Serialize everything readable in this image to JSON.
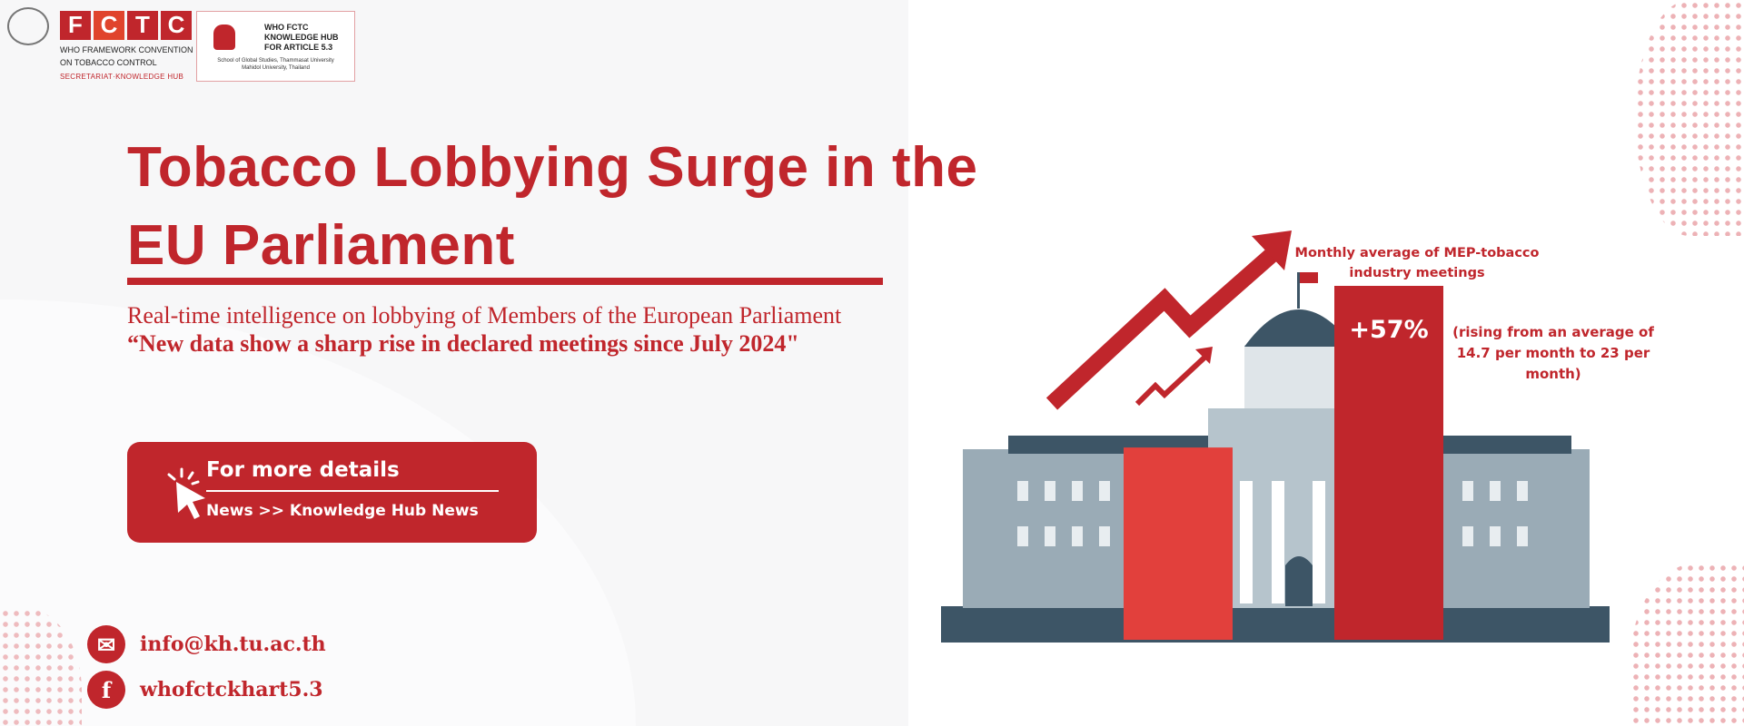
{
  "logos": {
    "fctc_letters": [
      "F",
      "C",
      "T",
      "C"
    ],
    "fctc_line1": "WHO FRAMEWORK CONVENTION",
    "fctc_line2": "ON TOBACCO CONTROL",
    "fctc_line3": "SECRETARIAT·KNOWLEDGE HUB",
    "hub_line1": "WHO FCTC",
    "hub_line2": "KNOWLEDGE HUB",
    "hub_line3": "FOR ARTICLE 5.3",
    "hub_line4": "School of Global Studies, Thammasat University",
    "hub_line5": "Mahidol University, Thailand"
  },
  "headline": "Tobacco Lobbying Surge in the EU Parliament",
  "subtitle": "Real-time intelligence on lobbying of Members of the European Parliament",
  "quote": "“New data show a sharp rise in declared meetings since July 2024\"",
  "button": {
    "title": "For more details",
    "path": "News >> Knowledge Hub News"
  },
  "contacts": {
    "email": "info@kh.tu.ac.th",
    "facebook": "whofctckhart5.3"
  },
  "infographic": {
    "label": "Monthly average of MEP-tobacco industry meetings",
    "change": "+57%",
    "note": "(rising from an average of 14.7 per month to 23 per month)",
    "before_value": 14.7,
    "after_value": 23
  },
  "colors": {
    "brand_red": "#c0262c",
    "bar_light": "#e2403c",
    "building": "#8fa2ae",
    "dome": "#3d5566"
  }
}
